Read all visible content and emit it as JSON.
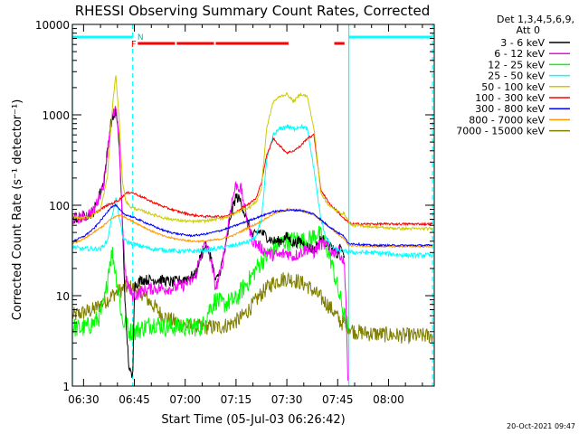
{
  "chart_data": {
    "type": "line",
    "title": "RHESSI Observing Summary Count Rates, Corrected",
    "xlabel": "Start Time (05-Jul-03 06:26:42)",
    "ylabel": "Corrected Count Rate (s⁻¹ detector⁻¹)",
    "yscale": "log",
    "ylim": [
      1,
      10000
    ],
    "xlim": [
      386.7,
      493.5
    ],
    "x_unit": "minutes after 00:00 UT",
    "xticks": [
      {
        "v": 390,
        "label": "06:30"
      },
      {
        "v": 405,
        "label": "06:45"
      },
      {
        "v": 420,
        "label": "07:00"
      },
      {
        "v": 435,
        "label": "07:15"
      },
      {
        "v": 450,
        "label": "07:30"
      },
      {
        "v": 465,
        "label": "07:45"
      },
      {
        "v": 480,
        "label": "08:00"
      }
    ],
    "yticks": [
      {
        "v": 1,
        "label": "1"
      },
      {
        "v": 10,
        "label": "10"
      },
      {
        "v": 100,
        "label": "100"
      },
      {
        "v": 1000,
        "label": "1000"
      },
      {
        "v": 10000,
        "label": "10000"
      }
    ],
    "legend": {
      "header": [
        "Det 1,3,4,5,6,9,",
        "Att 0"
      ],
      "position": "right"
    },
    "timestamp": "20-Oct-2021 09:47",
    "night_intervals": [
      [
        386.7,
        404.5
      ],
      [
        468.3,
        493.0
      ]
    ],
    "night_lines": [
      386.7,
      404.5,
      468.3,
      493.0
    ],
    "flare_intervals": [
      [
        406.0,
        417.0
      ],
      [
        417.5,
        428.5
      ],
      [
        429.0,
        450.5
      ],
      [
        464.0,
        467.0
      ]
    ],
    "f_label": {
      "x": 404.8,
      "text": "F"
    },
    "n_label": {
      "x": 406.0,
      "text": "N"
    },
    "series": [
      {
        "name": "3 - 6 keV",
        "color": "#000000",
        "x": [
          386.7,
          390,
          393,
          396,
          398,
          399.5,
          400.5,
          401.5,
          402.5,
          403.5,
          404.5,
          405,
          407,
          410,
          413,
          416,
          419,
          421,
          423,
          424.5,
          426,
          427.5,
          429,
          430.5,
          432,
          433.5,
          435,
          436.5,
          438,
          440,
          442,
          444,
          446,
          448,
          450,
          452,
          454,
          456,
          458,
          460,
          462,
          463.5,
          465,
          466,
          467
        ],
        "y": [
          70,
          75,
          85,
          180,
          800,
          1100,
          500,
          60,
          5,
          1.5,
          1.2,
          13,
          15,
          15,
          15,
          14,
          15,
          16,
          17,
          27,
          35,
          28,
          14,
          20,
          35,
          80,
          125,
          110,
          70,
          45,
          52,
          45,
          40,
          40,
          45,
          38,
          40,
          35,
          32,
          42,
          38,
          32,
          28,
          35,
          25
        ]
      },
      {
        "name": "6 - 12 keV",
        "color": "#ff00ff",
        "x": [
          386.7,
          390,
          393,
          396,
          398,
          399.5,
          400.5,
          401.5,
          402.5,
          403.5,
          404.5,
          405,
          407,
          410,
          413,
          416,
          419,
          421,
          423,
          424.5,
          426,
          427.5,
          429,
          430.5,
          432,
          433.5,
          435,
          436.5,
          438,
          440,
          442,
          444,
          446,
          448,
          450,
          452,
          454,
          456,
          458,
          460,
          462,
          463.5,
          465,
          466,
          467,
          467.5,
          468
        ],
        "y": [
          70,
          75,
          85,
          180,
          800,
          1200,
          500,
          60,
          15,
          12,
          10,
          10,
          11,
          12,
          12,
          12,
          13,
          14,
          16,
          28,
          38,
          26,
          12,
          18,
          40,
          100,
          170,
          150,
          75,
          40,
          35,
          30,
          28,
          28,
          30,
          27,
          30,
          33,
          30,
          38,
          35,
          30,
          32,
          28,
          22,
          8,
          1
        ]
      },
      {
        "name": "12 - 25 keV",
        "color": "#00ff00",
        "x": [
          386.7,
          389,
          391,
          393,
          395,
          396.5,
          397.5,
          398.5,
          399.5,
          400.5,
          401.5,
          402.5,
          403.5,
          405,
          408,
          411,
          414,
          417,
          420,
          423,
          425,
          427,
          429,
          431,
          433,
          435,
          437,
          439,
          441,
          443,
          445,
          447,
          449,
          451,
          453,
          455,
          457,
          459,
          461,
          463,
          465,
          467,
          468
        ],
        "y": [
          4.5,
          4.3,
          4.5,
          5,
          6,
          10,
          22,
          30,
          18,
          10,
          5,
          5,
          4,
          4,
          4.5,
          5,
          4.5,
          4.5,
          4.5,
          4.5,
          4.5,
          7,
          9,
          8,
          8.5,
          9,
          12,
          15,
          20,
          25,
          30,
          35,
          40,
          40,
          42,
          40,
          42,
          50,
          40,
          25,
          12,
          6,
          4.5
        ]
      },
      {
        "name": "25 - 50 keV",
        "color": "#00ffff",
        "x": [
          386.7,
          389,
          392,
          395,
          397,
          398.5,
          399.5,
          400.5,
          401.5,
          402.5,
          404,
          406,
          410,
          414,
          418,
          422,
          426,
          429,
          431,
          433,
          434.5,
          435.5,
          437,
          439,
          441,
          442.5,
          444,
          446,
          448,
          450,
          452,
          454,
          456,
          458,
          460,
          461.5,
          463,
          465,
          467,
          469,
          475,
          480,
          485,
          490,
          493
        ],
        "y": [
          35,
          33,
          33,
          33,
          40,
          80,
          120,
          75,
          45,
          40,
          38,
          36,
          33,
          32,
          31,
          31,
          32,
          33,
          34,
          35,
          36,
          37,
          38,
          40,
          45,
          70,
          300,
          600,
          700,
          750,
          700,
          750,
          700,
          250,
          70,
          45,
          35,
          32,
          31,
          30,
          30,
          29,
          28,
          28,
          28
        ]
      },
      {
        "name": "50 - 100 keV",
        "color": "#cccc00",
        "x": [
          386.7,
          389,
          392,
          395,
          397,
          398.5,
          399.5,
          400.5,
          401.5,
          402.5,
          404,
          406,
          410,
          414,
          418,
          422,
          426,
          429,
          431,
          433,
          434.5,
          435.5,
          437,
          439,
          441,
          442.5,
          444,
          446,
          448,
          450,
          452,
          454,
          456,
          458,
          460,
          461.5,
          463,
          465,
          467,
          469,
          475,
          480,
          485,
          490,
          493
        ],
        "y": [
          75,
          72,
          75,
          90,
          200,
          1200,
          2800,
          900,
          180,
          110,
          95,
          90,
          80,
          72,
          68,
          66,
          67,
          70,
          72,
          76,
          80,
          85,
          90,
          95,
          110,
          150,
          700,
          1400,
          1600,
          1700,
          1400,
          1700,
          1600,
          700,
          140,
          110,
          95,
          85,
          80,
          60,
          58,
          56,
          55,
          55,
          55
        ]
      },
      {
        "name": "100 - 300 keV",
        "color": "#ff0000",
        "x": [
          386.7,
          389,
          392,
          395,
          397,
          398.5,
          399.5,
          400.5,
          401.5,
          402.5,
          404,
          406,
          410,
          414,
          418,
          422,
          426,
          429,
          431,
          433,
          434.5,
          435.5,
          437,
          439,
          441,
          442.5,
          444,
          446,
          448,
          450,
          452,
          454,
          456,
          458,
          460,
          461.5,
          463,
          465,
          467,
          469,
          475,
          480,
          485,
          490,
          493
        ],
        "y": [
          72,
          70,
          75,
          90,
          100,
          105,
          110,
          115,
          125,
          135,
          140,
          130,
          110,
          95,
          85,
          78,
          75,
          75,
          75,
          78,
          82,
          88,
          95,
          105,
          120,
          180,
          350,
          550,
          450,
          380,
          400,
          450,
          550,
          600,
          150,
          120,
          100,
          85,
          70,
          62,
          62,
          62,
          62,
          62,
          62
        ]
      },
      {
        "name": "300 - 800 keV",
        "color": "#0000ff",
        "x": [
          386.7,
          390,
          393,
          396,
          398,
          399.5,
          400.5,
          402,
          404,
          406,
          410,
          414,
          418,
          422,
          426,
          430,
          434,
          438,
          442,
          446,
          450,
          454,
          458,
          462,
          465,
          467,
          468,
          475,
          480,
          485,
          490,
          493
        ],
        "y": [
          40,
          45,
          55,
          75,
          95,
          100,
          90,
          80,
          75,
          70,
          60,
          52,
          48,
          46,
          48,
          52,
          58,
          66,
          75,
          85,
          88,
          88,
          80,
          60,
          50,
          45,
          38,
          36,
          36,
          36,
          36,
          36
        ]
      },
      {
        "name": "800 - 7000 keV",
        "color": "#ff9900",
        "x": [
          386.7,
          390,
          393,
          396,
          398,
          399.5,
          400.5,
          402,
          404,
          406,
          410,
          414,
          418,
          422,
          426,
          430,
          434,
          438,
          442,
          446,
          450,
          454,
          458,
          462,
          465,
          467,
          468,
          475,
          480,
          485,
          490,
          493
        ],
        "y": [
          38,
          42,
          50,
          60,
          70,
          75,
          78,
          75,
          68,
          62,
          52,
          45,
          42,
          40,
          40,
          42,
          46,
          55,
          65,
          80,
          90,
          88,
          78,
          60,
          48,
          42,
          36,
          35,
          35,
          35,
          35,
          35
        ]
      },
      {
        "name": "7000 - 15000 keV",
        "color": "#808000",
        "x": [
          386.7,
          390,
          393,
          395,
          397,
          399,
          401,
          403,
          405,
          407,
          409,
          411,
          413,
          415,
          418,
          421,
          424,
          427,
          430,
          433,
          436,
          438,
          440,
          442,
          444,
          446,
          448,
          450,
          452,
          454,
          456,
          458,
          460,
          462,
          464,
          466,
          467,
          470,
          475,
          480,
          485,
          490,
          493
        ],
        "y": [
          6,
          6.5,
          7,
          8,
          9,
          10.5,
          11.5,
          12.5,
          12,
          11,
          9,
          7.5,
          6.2,
          5.5,
          5,
          4.5,
          4.5,
          4.5,
          4.5,
          4.8,
          5.5,
          6.5,
          8,
          10,
          12,
          14,
          15,
          15.5,
          15,
          14,
          13,
          11,
          9.5,
          8,
          6.5,
          5,
          5,
          4,
          3.8,
          3.7,
          3.6,
          3.6,
          3.6
        ]
      }
    ]
  }
}
